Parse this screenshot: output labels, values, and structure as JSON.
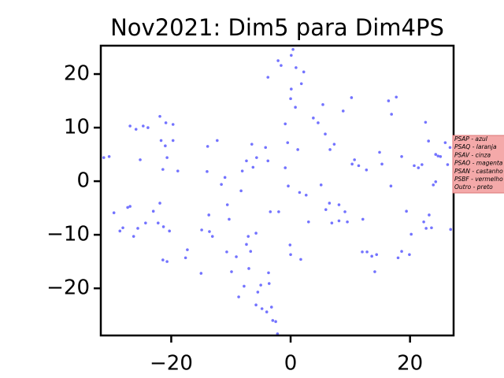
{
  "chart_data": {
    "type": "scatter",
    "title": "Nov2021: Dim5 para Dim4PS",
    "x": [
      -31.3,
      -30.4,
      -29.6,
      -28.6,
      -28.1,
      -27.3,
      -26.9,
      -26.3,
      -25.6,
      -26.9,
      -25.9,
      -25.2,
      -24.7,
      -23.9,
      -24.3,
      -23.0,
      -22.2,
      -21.9,
      -21.7,
      -21.0,
      -21.4,
      -20.7,
      -20.9,
      -19.7,
      -19.7,
      -21.9,
      -21.3,
      -20.3,
      -21.4,
      -20.7,
      -18.9,
      -17.6,
      -17.3,
      -15.0,
      -14.9,
      -13.7,
      -13.6,
      -14.0,
      -13.9,
      -13.1,
      -12.3,
      -11.6,
      -11.0,
      -10.6,
      -10.3,
      -10.7,
      -9.9,
      -9.1,
      -8.7,
      -8.3,
      -8.1,
      -7.8,
      -7.4,
      -7.4,
      -7.1,
      -7.0,
      -6.7,
      -6.5,
      -6.3,
      -5.8,
      -5.7,
      -5.8,
      -5.5,
      -5.0,
      -4.8,
      -4.2,
      -3.8,
      -4.0,
      -3.7,
      -3.6,
      -3.4,
      -3.2,
      -3.0,
      -2.5,
      -2.2,
      -2.0,
      -3.8,
      -2.1,
      -1.6,
      -0.9,
      -0.9,
      -0.5,
      -0.4,
      -0.1,
      0.0,
      0.0,
      0.1,
      0.1,
      0.4,
      0.8,
      0.9,
      1.2,
      1.5,
      1.7,
      1.8,
      2.2,
      2.6,
      3.0,
      3.8,
      4.6,
      5.1,
      5.4,
      5.8,
      5.9,
      6.5,
      6.6,
      6.9,
      7.3,
      8.1,
      8.1,
      8.8,
      9.1,
      9.5,
      10.2,
      10.3,
      10.7,
      11.4,
      12.0,
      12.1,
      12.7,
      12.8,
      13.6,
      14.1,
      14.4,
      14.9,
      15.3,
      16.4,
      16.8,
      16.9,
      17.7,
      18.0,
      18.6,
      18.6,
      19.4,
      19.9,
      20.2,
      20.7,
      21.4,
      22.0,
      22.3,
      22.6,
      22.7,
      23.1,
      23.2,
      23.6,
      23.9,
      24.3,
      24.3,
      24.7,
      25.1,
      25.9,
      26.3,
      26.8,
      26.7
    ],
    "values": [
      4.4,
      4.6,
      -5.9,
      -9.3,
      -8.7,
      -4.9,
      -4.7,
      -10.3,
      -8.8,
      10.3,
      9.7,
      4.0,
      10.3,
      10.0,
      -7.8,
      -5.6,
      -7.8,
      12.1,
      7.6,
      6.6,
      2.2,
      4.4,
      10.9,
      10.6,
      7.6,
      -4.1,
      -8.5,
      -9.3,
      -14.7,
      -15.0,
      1.9,
      -14.3,
      -12.8,
      -17.2,
      -9.1,
      -6.3,
      -9.4,
      1.8,
      6.5,
      -10.3,
      7.6,
      -0.6,
      0.7,
      -4.4,
      -7.1,
      -13.2,
      -16.9,
      -14.1,
      -21.6,
      -1.8,
      1.9,
      -19.6,
      3.8,
      -11.8,
      -10.3,
      -16.3,
      -13.1,
      6.9,
      2.6,
      -9.7,
      4.4,
      -23.1,
      -20.7,
      -19.4,
      -23.8,
      6.3,
      3.8,
      -24.4,
      -17.1,
      -19.1,
      -5.7,
      -23.5,
      -26.0,
      -26.2,
      -28.5,
      -5.7,
      19.4,
      22.5,
      21.6,
      2.5,
      10.7,
      7.2,
      -0.9,
      -11.9,
      -13.7,
      15.4,
      17.2,
      23.5,
      24.6,
      13.8,
      21.2,
      5.9,
      -2.1,
      -14.6,
      18.2,
      20.4,
      -2.6,
      -7.6,
      11.8,
      10.9,
      -0.7,
      14.3,
      8.8,
      -5.3,
      -4.1,
      5.9,
      -7.8,
      6.9,
      -4.4,
      -7.4,
      13.1,
      -5.7,
      -7.6,
      15.6,
      3.2,
      4.0,
      2.9,
      -13.2,
      -7.1,
      2.1,
      -13.2,
      -14.0,
      -16.9,
      -13.7,
      5.4,
      3.2,
      15.0,
      -0.9,
      12.5,
      15.7,
      -14.3,
      4.6,
      -13.1,
      -5.6,
      -13.7,
      -9.9,
      2.9,
      2.5,
      3.1,
      -7.6,
      11.0,
      -8.8,
      7.5,
      -6.3,
      -8.7,
      -0.7,
      -0.1,
      5.0,
      4.7,
      4.6,
      7.2,
      3.1,
      -9.0,
      6.3
    ],
    "color": "#5a5aff",
    "xlim": [
      -31.8,
      27.3
    ],
    "ylim": [
      -28.8,
      25.3
    ],
    "xticks": [
      {
        "value": -20,
        "label": "−20"
      },
      0,
      20
    ],
    "yticks": [
      {
        "value": -20,
        "label": "−20"
      },
      {
        "value": -10,
        "label": "−10"
      },
      0,
      10,
      20
    ],
    "legend": [
      "PSAP - azul",
      "PSAQ - laranja",
      "PSAV - cinza",
      "PSAO - magenta",
      "PSAN - castanho",
      "PSBF - vermelho",
      "Outro - preto"
    ]
  }
}
